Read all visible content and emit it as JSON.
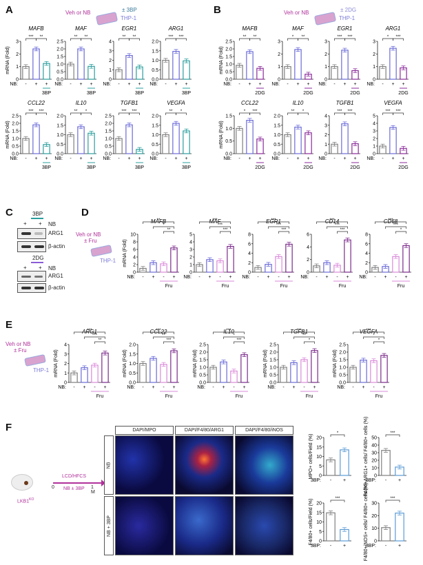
{
  "panels": {
    "A": {
      "letter": "A",
      "schematic": {
        "treatment": "Veh or NB",
        "inhibitor": "± 3BP",
        "cells": "THP-1"
      }
    },
    "B": {
      "letter": "B",
      "schematic": {
        "treatment": "Veh or NB",
        "inhibitor": "± 2DG",
        "cells": "THP-1"
      }
    },
    "C": {
      "letter": "C",
      "blots": [
        {
          "inhibitor": "3BP",
          "lane_labels": [
            "+",
            "+"
          ],
          "row_label": "NB",
          "bands": [
            "ARG1",
            "β-actin"
          ]
        },
        {
          "inhibitor": "2DG",
          "lane_labels": [
            "+",
            "+"
          ],
          "row_label": "NB",
          "bands": [
            "ARG1",
            "β-actin"
          ]
        }
      ]
    },
    "D": {
      "letter": "D",
      "schematic": {
        "treatment": "Veh or NB",
        "inhibitor": "± Fru",
        "cells": "THP-1"
      }
    },
    "E": {
      "letter": "E",
      "schematic": {
        "treatment": "Veh or NB",
        "inhibitor": "± Fru",
        "cells": "THP-1"
      }
    },
    "F": {
      "letter": "F",
      "schematic": {
        "mouse": "LKB1",
        "mouse_sup": "KO",
        "diet": "LCD/HFCS",
        "treatment": "NB ± 3BP",
        "start": "0",
        "end": "1 M"
      },
      "stain_headers": [
        "DAPI/MPO",
        "DAPI/F4/80/ARG1",
        "DAPI/F4/80/iNOS"
      ],
      "row_labels": [
        "NB",
        "NB + 3BP"
      ]
    }
  },
  "common": {
    "ylabel": "mRNA (Fold)",
    "nb_label": "NB:",
    "bp_label": "3BP:"
  },
  "colors": {
    "veh": "#7f7f7f",
    "nb": "#6a6ad8",
    "bp3": "#2a9d9d",
    "dg2": "#8a2a9a",
    "fru": "#d98ad9",
    "nbfru": "#7a2a8a",
    "f_plus": "#5b9bd5",
    "schem_magenta": "#b0309a"
  },
  "chart_data": [
    {
      "panel": "A",
      "type": "bar",
      "title": "MAFB",
      "categories": [
        "-",
        "+",
        "+ 3BP"
      ],
      "values": [
        1.0,
        2.4,
        1.25
      ],
      "ylim": [
        0,
        3
      ],
      "yticks": [
        "0",
        "1",
        "2",
        "3"
      ],
      "sig": [
        "***",
        "**"
      ],
      "ylabel": "mRNA (Fold)"
    },
    {
      "panel": "A",
      "type": "bar",
      "title": "MAF",
      "categories": [
        "-",
        "+",
        "+ 3BP"
      ],
      "values": [
        1.0,
        2.0,
        0.85
      ],
      "ylim": [
        0,
        2.5
      ],
      "yticks": [
        "0.0",
        "0.5",
        "1.0",
        "1.5",
        "2.0",
        "2.5"
      ],
      "sig": [
        "**",
        "**"
      ]
    },
    {
      "panel": "A",
      "type": "bar",
      "title": "EGR1",
      "categories": [
        "-",
        "+",
        "+ 3BP"
      ],
      "values": [
        1.0,
        2.5,
        1.3
      ],
      "ylim": [
        0,
        4
      ],
      "yticks": [
        "0",
        "1",
        "2",
        "3",
        "4"
      ],
      "sig": [
        "**",
        "**"
      ]
    },
    {
      "panel": "A",
      "type": "bar",
      "title": "ARG1",
      "categories": [
        "-",
        "+",
        "+ 3BP"
      ],
      "values": [
        1.0,
        1.47,
        0.97
      ],
      "ylim": [
        0,
        2.0
      ],
      "yticks": [
        "0.0",
        "0.5",
        "1.0",
        "1.5",
        "2.0"
      ],
      "sig": [
        "***",
        "***"
      ]
    },
    {
      "panel": "A",
      "type": "bar",
      "title": "CCL22",
      "categories": [
        "-",
        "+",
        "+ 3BP"
      ],
      "values": [
        1.0,
        1.9,
        0.6
      ],
      "ylim": [
        0,
        2.5
      ],
      "yticks": [
        "0.0",
        "0.5",
        "1.0",
        "1.5",
        "2.0",
        "2.5"
      ],
      "sig": [
        "***",
        "***"
      ],
      "ylabel": "mRNA (Fold)"
    },
    {
      "panel": "A",
      "type": "bar",
      "title": "IL10",
      "categories": [
        "-",
        "+",
        "+ 3BP"
      ],
      "values": [
        1.0,
        1.42,
        1.08
      ],
      "ylim": [
        0,
        2.0
      ],
      "yticks": [
        "0.0",
        "0.5",
        "1.0",
        "1.5",
        "2.0"
      ],
      "sig": [
        "**",
        "*"
      ]
    },
    {
      "panel": "A",
      "type": "bar",
      "title": "TGFB1",
      "categories": [
        "-",
        "+",
        "+ 3BP"
      ],
      "values": [
        1.0,
        1.9,
        0.28
      ],
      "ylim": [
        0,
        2.5
      ],
      "yticks": [
        "0.0",
        "0.5",
        "1.0",
        "1.5",
        "2.0",
        "2.5"
      ],
      "sig": [
        "***",
        "***"
      ]
    },
    {
      "panel": "A",
      "type": "bar",
      "title": "VEGFA",
      "categories": [
        "-",
        "+",
        "+ 3BP"
      ],
      "values": [
        1.0,
        1.6,
        1.2
      ],
      "ylim": [
        0,
        2.0
      ],
      "yticks": [
        "0.0",
        "0.5",
        "1.0",
        "1.5",
        "2.0"
      ],
      "sig": [
        "**",
        "*"
      ]
    },
    {
      "panel": "B",
      "type": "bar",
      "title": "MAFB",
      "categories": [
        "-",
        "+",
        "+ 2DG"
      ],
      "values": [
        0.92,
        1.82,
        0.72
      ],
      "ylim": [
        0,
        2.5
      ],
      "yticks": [
        "0.0",
        "0.5",
        "1.0",
        "1.5",
        "2.0",
        "2.5"
      ],
      "sig": [
        "**",
        "**"
      ],
      "ylabel": "mRNA (Fold)"
    },
    {
      "panel": "B",
      "type": "bar",
      "title": "MAF",
      "categories": [
        "-",
        "+",
        "+ 2DG"
      ],
      "values": [
        1.0,
        2.35,
        0.4
      ],
      "ylim": [
        0,
        3
      ],
      "yticks": [
        "0",
        "1",
        "2",
        "3"
      ],
      "sig": [
        "*",
        "**"
      ]
    },
    {
      "panel": "B",
      "type": "bar",
      "title": "EGR1",
      "categories": [
        "-",
        "+",
        "+ 2DG"
      ],
      "values": [
        1.0,
        2.3,
        0.68
      ],
      "ylim": [
        0,
        3
      ],
      "yticks": [
        "0",
        "1",
        "2",
        "3"
      ],
      "sig": [
        "***",
        "***"
      ]
    },
    {
      "panel": "B",
      "type": "bar",
      "title": "ARG1",
      "categories": [
        "-",
        "+",
        "+ 2DG"
      ],
      "values": [
        1.0,
        2.45,
        0.9
      ],
      "ylim": [
        0,
        3
      ],
      "yticks": [
        "0",
        "1",
        "2",
        "3"
      ],
      "sig": [
        "*",
        "***"
      ]
    },
    {
      "panel": "B",
      "type": "bar",
      "title": "CCL22",
      "categories": [
        "-",
        "+",
        "+ 2DG"
      ],
      "values": [
        1.0,
        1.32,
        0.58
      ],
      "ylim": [
        0,
        1.5
      ],
      "yticks": [
        "0.0",
        "0.5",
        "1.0",
        "1.5"
      ],
      "sig": [
        "*",
        "***"
      ],
      "ylabel": "mRNA (Fold)"
    },
    {
      "panel": "B",
      "type": "bar",
      "title": "IL10",
      "categories": [
        "-",
        "+",
        "+ 2DG"
      ],
      "values": [
        1.0,
        1.4,
        1.1
      ],
      "ylim": [
        0,
        2.0
      ],
      "yticks": [
        "0.0",
        "0.5",
        "1.0",
        "1.5",
        "2.0"
      ],
      "sig": [
        "**",
        "*"
      ]
    },
    {
      "panel": "B",
      "type": "bar",
      "title": "TGFB1",
      "categories": [
        "-",
        "+",
        "+ 2DG"
      ],
      "values": [
        1.0,
        3.15,
        1.05
      ],
      "ylim": [
        0,
        4
      ],
      "yticks": [
        "0",
        "1",
        "2",
        "3",
        "4"
      ],
      "sig": [
        "***",
        "***"
      ]
    },
    {
      "panel": "B",
      "type": "bar",
      "title": "VEGFA",
      "categories": [
        "-",
        "+",
        "+ 2DG"
      ],
      "values": [
        1.0,
        3.45,
        0.7
      ],
      "ylim": [
        0,
        5
      ],
      "yticks": [
        "0",
        "1",
        "2",
        "3",
        "4",
        "5"
      ],
      "sig": [
        "***",
        "***"
      ]
    },
    {
      "panel": "D",
      "type": "bar",
      "title": "MAFB",
      "categories": [
        "-",
        "+",
        "- Fru",
        "+ Fru"
      ],
      "values": [
        1.0,
        2.5,
        2.2,
        6.4
      ],
      "ylim": [
        0,
        10
      ],
      "yticks": [
        "0",
        "2",
        "4",
        "6",
        "8",
        "10"
      ],
      "sig": [
        "**",
        "*",
        "**"
      ],
      "ylabel": "mRNA (Fold)"
    },
    {
      "panel": "D",
      "type": "bar",
      "title": "MAF",
      "categories": [
        "-",
        "+",
        "- Fru",
        "+ Fru"
      ],
      "values": [
        1.0,
        1.65,
        1.5,
        3.4
      ],
      "ylim": [
        0,
        5
      ],
      "yticks": [
        "0",
        "1",
        "2",
        "3",
        "4",
        "5"
      ],
      "sig": [
        "***",
        "***",
        "***"
      ]
    },
    {
      "panel": "D",
      "type": "bar",
      "title": "EGR1",
      "categories": [
        "-",
        "+",
        "- Fru",
        "+ Fru"
      ],
      "values": [
        1.0,
        1.65,
        3.3,
        5.9
      ],
      "ylim": [
        0,
        8
      ],
      "yticks": [
        "0",
        "2",
        "4",
        "6",
        "8"
      ],
      "sig": [
        "***",
        "***",
        "***"
      ],
      "extra_sig": "***"
    },
    {
      "panel": "D",
      "type": "bar",
      "title": "CD14",
      "categories": [
        "-",
        "+",
        "- Fru",
        "+ Fru"
      ],
      "values": [
        1.0,
        1.5,
        1.1,
        5.1
      ],
      "ylim": [
        0,
        6
      ],
      "yticks": [
        "0",
        "2",
        "4",
        "6"
      ],
      "sig": [
        "***",
        "***",
        "***"
      ]
    },
    {
      "panel": "D",
      "type": "bar",
      "title": "CD68",
      "categories": [
        "-",
        "+",
        "- Fru",
        "+ Fru"
      ],
      "values": [
        1.0,
        1.2,
        3.3,
        5.6
      ],
      "ylim": [
        0,
        8
      ],
      "yticks": [
        "0",
        "2",
        "4",
        "6",
        "8"
      ],
      "sig": [
        "***",
        "***",
        "*"
      ],
      "extra_sig": "*"
    },
    {
      "panel": "E",
      "type": "bar",
      "title": "ARG1",
      "categories": [
        "-",
        "+",
        "- Fru",
        "+ Fru"
      ],
      "values": [
        1.0,
        1.55,
        1.82,
        3.1
      ],
      "ylim": [
        0,
        4
      ],
      "yticks": [
        "0",
        "1",
        "2",
        "3",
        "4"
      ],
      "sig": [
        "***",
        "***",
        "**"
      ],
      "extra_sig": "*",
      "ylabel": "mRNA (Fold)"
    },
    {
      "panel": "E",
      "type": "bar",
      "title": "CCL22",
      "categories": [
        "-",
        "+",
        "- Fru",
        "+ Fru"
      ],
      "values": [
        1.0,
        1.27,
        0.95,
        1.67
      ],
      "ylim": [
        0,
        2.0
      ],
      "yticks": [
        "0.0",
        "0.5",
        "1.0",
        "1.5",
        "2.0"
      ],
      "sig": [
        "***",
        "**",
        "***"
      ],
      "ylabel": "mRNA (Fold)"
    },
    {
      "panel": "E",
      "type": "bar",
      "title": "IL10",
      "categories": [
        "-",
        "+",
        "- Fru",
        "+ Fru"
      ],
      "values": [
        1.0,
        1.35,
        0.75,
        1.83
      ],
      "ylim": [
        0,
        2.5
      ],
      "yticks": [
        "0.0",
        "0.5",
        "1.0",
        "1.5",
        "2.0",
        "2.5"
      ],
      "sig": [
        "***",
        "*",
        "***"
      ],
      "ylabel": "mRNA (Fold)"
    },
    {
      "panel": "E",
      "type": "bar",
      "title": "TGFB1",
      "categories": [
        "-",
        "+",
        "- Fru",
        "+ Fru"
      ],
      "values": [
        1.0,
        1.3,
        1.5,
        2.1
      ],
      "ylim": [
        0,
        2.5
      ],
      "yticks": [
        "0.0",
        "0.5",
        "1.0",
        "1.5",
        "2.0",
        "2.5"
      ],
      "sig": [
        "***",
        "**",
        "*"
      ],
      "extra_sig": "*",
      "ylabel": "mRNA (Fold)"
    },
    {
      "panel": "E",
      "type": "bar",
      "title": "VEGFA",
      "categories": [
        "-",
        "+",
        "- Fru",
        "+ Fru"
      ],
      "values": [
        1.0,
        1.47,
        1.43,
        1.78
      ],
      "ylim": [
        0,
        2.5
      ],
      "yticks": [
        "0.0",
        "0.5",
        "1.0",
        "1.5",
        "2.0",
        "2.5"
      ],
      "sig": [
        "***",
        "*",
        "*"
      ],
      "extra_sig": "**",
      "extra_sig2": "**",
      "ylabel": "mRNA (Fold)"
    },
    {
      "panel": "F",
      "type": "bar",
      "title": "",
      "ylabel": "MPO+ cells/Field (%)",
      "categories": [
        "3BP -",
        "3BP +"
      ],
      "values": [
        8.2,
        13.5
      ],
      "ylim": [
        0,
        20
      ],
      "yticks": [
        "0",
        "5",
        "10",
        "15",
        "20"
      ],
      "sig": [
        "*"
      ]
    },
    {
      "panel": "F",
      "type": "bar",
      "title": "",
      "ylabel": "F4/80+ARG1+ cells/ F4/80+ cells (%)",
      "categories": [
        "3BP -",
        "3BP +"
      ],
      "values": [
        33,
        11
      ],
      "ylim": [
        0,
        50
      ],
      "yticks": [
        "0",
        "10",
        "20",
        "30",
        "40",
        "50"
      ],
      "sig": [
        "***"
      ]
    },
    {
      "panel": "F",
      "type": "bar",
      "title": "",
      "ylabel": "F4/80+ cells/Field (%)",
      "categories": [
        "3BP -",
        "3BP +"
      ],
      "values": [
        14.8,
        6.0
      ],
      "ylim": [
        0,
        20
      ],
      "yticks": [
        "0",
        "5",
        "10",
        "15",
        "20"
      ],
      "sig": [
        "***"
      ]
    },
    {
      "panel": "F",
      "type": "bar",
      "title": "",
      "ylabel": "F4/80+iNOS+ cells/ F4/80+ cells (%)",
      "categories": [
        "3BP -",
        "3BP +"
      ],
      "values": [
        10.5,
        22
      ],
      "ylim": [
        0,
        30
      ],
      "yticks": [
        "0",
        "10",
        "20",
        "30"
      ],
      "sig": [
        "***"
      ]
    }
  ]
}
